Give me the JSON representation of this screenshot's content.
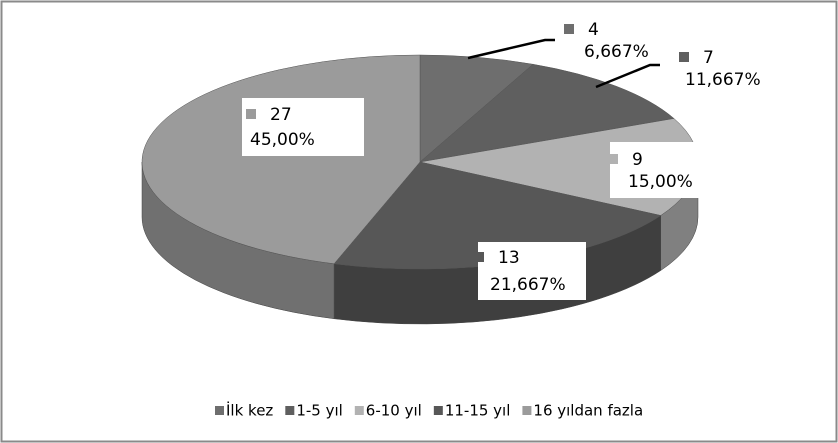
{
  "chart_data": {
    "type": "pie3d",
    "categories": [
      "İlk kez",
      "1-5 yıl",
      "6-10 yıl",
      "11-15 yıl",
      "16 yıldan fazla"
    ],
    "values": [
      4,
      7,
      9,
      13,
      27
    ],
    "percentages": [
      6.667,
      11.667,
      15.0,
      21.667,
      45.0
    ],
    "percentage_labels": [
      "6,667%",
      "11,667%",
      "15,00%",
      "21,667%",
      "45,00%"
    ],
    "colors": [
      "#6e6e6e",
      "#5f5f5f",
      "#b2b2b2",
      "#575757",
      "#9b9b9b"
    ],
    "legend": "bottom"
  }
}
